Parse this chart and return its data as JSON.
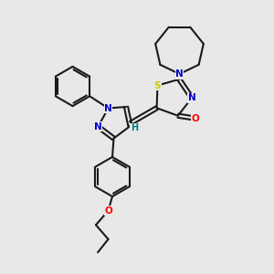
{
  "background_color": "#e8e8e8",
  "atom_colors": {
    "C": "#000000",
    "N": "#0000cd",
    "O": "#ff0000",
    "S": "#cccc00",
    "H": "#008080"
  },
  "bond_color": "#1a1a1a",
  "bond_width": 1.5,
  "figsize": [
    3.0,
    3.0
  ],
  "dpi": 100,
  "xlim": [
    0,
    10
  ],
  "ylim": [
    0,
    10
  ]
}
